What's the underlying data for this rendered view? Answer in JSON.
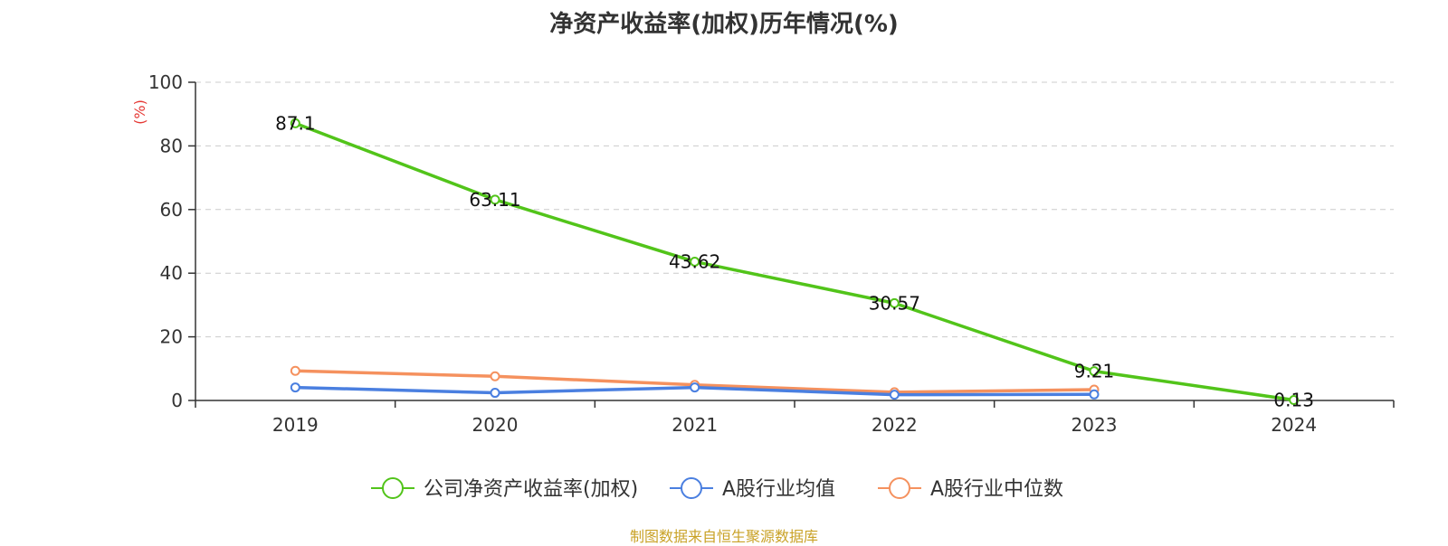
{
  "chart_data": {
    "type": "line",
    "title": "净资产收益率(加权)历年情况(%)",
    "ylabel": "(%)",
    "xlabel": "",
    "categories": [
      "2019",
      "2020",
      "2021",
      "2022",
      "2023",
      "2024"
    ],
    "ylim": [
      0,
      100
    ],
    "yticks": [
      0,
      20,
      40,
      60,
      80,
      100
    ],
    "grid": true,
    "legend_position": "bottom",
    "series": [
      {
        "name": "公司净资产收益率(加权)",
        "color": "#52c41a",
        "values": [
          87.1,
          63.11,
          43.62,
          30.57,
          9.21,
          0.13
        ],
        "labels": [
          "87.1",
          "63.11",
          "43.62",
          "30.57",
          "9.21",
          "0.13"
        ]
      },
      {
        "name": "A股行业均值",
        "color": "#4a7fe0",
        "values": [
          4.1,
          2.4,
          4.1,
          1.8,
          1.9,
          null
        ]
      },
      {
        "name": "A股行业中位数",
        "color": "#f5915e",
        "values": [
          9.3,
          7.6,
          4.9,
          2.6,
          3.4,
          null
        ]
      }
    ]
  },
  "source": "制图数据来自恒生聚源数据库"
}
